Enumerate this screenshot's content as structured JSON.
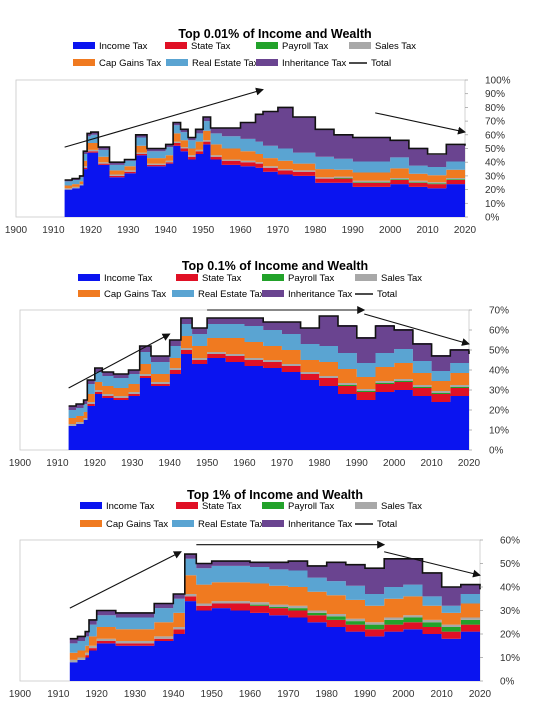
{
  "colors": {
    "income": "#0a14f0",
    "state": "#e01025",
    "payroll": "#22a22a",
    "sales": "#a8a8a8",
    "capgains": "#f07a20",
    "realestate": "#5aa4d2",
    "inheritance": "#6a4490",
    "total": "#111111"
  },
  "chart_data": [
    {
      "type": "area",
      "stacked": true,
      "step": true,
      "title": "Top 0.01% of Income and Wealth",
      "legend_position": "top",
      "legend": [
        "Income Tax",
        "State Tax",
        "Payroll Tax",
        "Sales Tax",
        "Cap Gains Tax",
        "Real Estate Tax",
        "Inheritance Tax",
        "Total"
      ],
      "xlim": [
        1900,
        2020
      ],
      "xticks": [
        "1900",
        "1910",
        "1920",
        "1930",
        "1940",
        "1950",
        "1960",
        "1970",
        "1980",
        "1990",
        "2000",
        "2010",
        "2020"
      ],
      "ylim": [
        0,
        100
      ],
      "yticks": [
        "0%",
        "10%",
        "20%",
        "30%",
        "40%",
        "50%",
        "60%",
        "70%",
        "80%",
        "90%",
        "100%"
      ],
      "y_axis_side": "right",
      "grid": false,
      "arrows": [
        {
          "from": [
            1913,
            51
          ],
          "to": [
            1966,
            93
          ]
        },
        {
          "from": [
            1996,
            76
          ],
          "to": [
            2020,
            62
          ]
        }
      ],
      "x": [
        1913,
        1915,
        1917,
        1918,
        1919,
        1920,
        1922,
        1925,
        1929,
        1932,
        1935,
        1940,
        1942,
        1944,
        1946,
        1948,
        1950,
        1952,
        1955,
        1960,
        1964,
        1966,
        1970,
        1974,
        1980,
        1985,
        1990,
        2000,
        2005,
        2010,
        2015,
        2020
      ],
      "series": [
        {
          "key": "income",
          "values": [
            20,
            21,
            23,
            35,
            47,
            47,
            38,
            29,
            32,
            45,
            37,
            39,
            52,
            48,
            42,
            46,
            53,
            42,
            38,
            37,
            36,
            33,
            31,
            30,
            25,
            25,
            22,
            24,
            22,
            21,
            24,
            23
          ]
        },
        {
          "key": "state",
          "values": [
            0,
            0,
            0,
            1,
            1,
            1,
            1,
            1,
            1,
            1,
            1,
            1,
            2,
            2,
            2,
            2,
            2,
            2,
            3,
            3,
            3,
            3,
            3,
            3,
            3,
            3,
            3,
            3,
            3,
            3,
            3,
            3
          ]
        },
        {
          "key": "payroll",
          "values": [
            0,
            0,
            0,
            0,
            0,
            0,
            0,
            0,
            0,
            0,
            0,
            0,
            0,
            0,
            0,
            0,
            0,
            0,
            0,
            0,
            0,
            0,
            0,
            0,
            0,
            0.5,
            0.5,
            0.5,
            0.5,
            0.5,
            0.5,
            0.5
          ]
        },
        {
          "key": "sales",
          "values": [
            1,
            1,
            1,
            1,
            1,
            1,
            1,
            1,
            1,
            1,
            1,
            1,
            1,
            1,
            1,
            1,
            1,
            1,
            1,
            1,
            1,
            1,
            1,
            1,
            1,
            1,
            1,
            1,
            1,
            1,
            1,
            1
          ]
        },
        {
          "key": "capgains",
          "values": [
            2,
            2,
            2,
            4,
            5,
            5,
            4,
            3,
            3,
            5,
            4,
            4,
            6,
            5,
            5,
            6,
            7,
            8,
            8,
            7,
            6,
            6,
            6,
            5,
            6,
            5,
            6,
            7,
            5,
            5,
            6,
            5
          ]
        },
        {
          "key": "realestate",
          "values": [
            3,
            3,
            3,
            5,
            5,
            6,
            5,
            4,
            4,
            6,
            5,
            6,
            6,
            6,
            6,
            6,
            7,
            8,
            9,
            9,
            9,
            9,
            9,
            8,
            9,
            8,
            8,
            8,
            6,
            6,
            6,
            6
          ]
        },
        {
          "key": "inheritance",
          "values": [
            1,
            1,
            1,
            2,
            2,
            2,
            2,
            2,
            1,
            2,
            2,
            2,
            2,
            2,
            2,
            3,
            3,
            4,
            6,
            12,
            20,
            25,
            30,
            26,
            20,
            17,
            18,
            13,
            13,
            9,
            12,
            13
          ]
        }
      ],
      "total_values": [
        27,
        28,
        30,
        48,
        61,
        62,
        51,
        40,
        42,
        60,
        50,
        53,
        69,
        64,
        58,
        64,
        73,
        65,
        65,
        69,
        75,
        77,
        80,
        73,
        64,
        60,
        58,
        56,
        50,
        46,
        53,
        52
      ]
    },
    {
      "type": "area",
      "stacked": true,
      "step": true,
      "title": "Top 0.1% of Income and Wealth",
      "legend_position": "top",
      "legend": [
        "Income Tax",
        "State Tax",
        "Payroll Tax",
        "Sales Tax",
        "Cap Gains Tax",
        "Real Estate Tax",
        "Inheritance Tax",
        "Total"
      ],
      "xlim": [
        1900,
        2020
      ],
      "xticks": [
        "1900",
        "1910",
        "1920",
        "1930",
        "1940",
        "1950",
        "1960",
        "1970",
        "1980",
        "1990",
        "2000",
        "2010",
        "2020"
      ],
      "ylim": [
        0,
        70
      ],
      "yticks": [
        "0%",
        "10%",
        "20%",
        "30%",
        "40%",
        "50%",
        "60%",
        "70%"
      ],
      "y_axis_side": "right",
      "grid": false,
      "arrows": [
        {
          "from": [
            1913,
            31
          ],
          "to": [
            1940,
            58
          ]
        },
        {
          "from": [
            1950,
            70
          ],
          "to": [
            1992,
            70
          ]
        },
        {
          "from": [
            1992,
            68
          ],
          "to": [
            2020,
            53
          ]
        }
      ],
      "x": [
        1913,
        1915,
        1917,
        1918,
        1920,
        1922,
        1925,
        1929,
        1932,
        1935,
        1940,
        1943,
        1946,
        1950,
        1955,
        1960,
        1965,
        1970,
        1975,
        1980,
        1985,
        1990,
        1995,
        2000,
        2005,
        2010,
        2015,
        2020
      ],
      "series": [
        {
          "key": "income",
          "values": [
            12,
            13,
            15,
            22,
            28,
            26,
            25,
            27,
            36,
            32,
            38,
            48,
            43,
            46,
            44,
            42,
            41,
            39,
            35,
            32,
            28,
            25,
            29,
            30,
            27,
            24,
            27,
            26
          ]
        },
        {
          "key": "state",
          "values": [
            0,
            0,
            0,
            1,
            1,
            1,
            1,
            1,
            1,
            1,
            2,
            2,
            2,
            2,
            3,
            3,
            3,
            3,
            3,
            4,
            4,
            4,
            4,
            4,
            4,
            4,
            4,
            4
          ]
        },
        {
          "key": "payroll",
          "values": [
            0,
            0,
            0,
            0,
            0,
            0,
            0,
            0,
            0,
            0,
            0,
            0,
            0,
            0,
            0,
            0,
            0,
            0,
            0,
            0,
            0.5,
            0.5,
            0.5,
            0.5,
            0.5,
            0.5,
            0.5,
            0.5
          ]
        },
        {
          "key": "sales",
          "values": [
            1,
            1,
            1,
            1,
            1,
            1,
            1,
            1,
            1,
            1,
            1,
            1,
            1,
            1,
            1,
            1,
            1,
            1,
            1,
            1,
            1,
            1,
            1,
            1,
            1,
            1,
            1,
            1
          ]
        },
        {
          "key": "capgains",
          "values": [
            3,
            3,
            3,
            4,
            4,
            4,
            4,
            4,
            5,
            4,
            5,
            6,
            6,
            7,
            8,
            8,
            7,
            7,
            6,
            7,
            7,
            6,
            7,
            8,
            6,
            5,
            6,
            6
          ]
        },
        {
          "key": "realestate",
          "values": [
            4,
            4,
            4,
            5,
            5,
            5,
            5,
            5,
            6,
            6,
            6,
            6,
            6,
            7,
            7,
            8,
            8,
            8,
            8,
            8,
            8,
            7,
            7,
            7,
            6,
            5,
            5,
            5
          ]
        },
        {
          "key": "inheritance",
          "values": [
            2,
            2,
            2,
            2,
            2,
            2,
            2,
            2,
            3,
            3,
            3,
            3,
            3,
            3,
            3,
            4,
            4,
            6,
            8,
            15,
            14,
            13,
            14,
            10,
            9,
            8,
            7,
            6
          ]
        }
      ],
      "total_values": [
        22,
        23,
        25,
        35,
        41,
        39,
        38,
        40,
        52,
        47,
        55,
        66,
        61,
        66,
        66,
        66,
        64,
        64,
        61,
        67,
        62,
        56,
        62,
        60,
        53,
        47,
        50,
        48
      ]
    },
    {
      "type": "area",
      "stacked": true,
      "step": true,
      "title": "Top 1% of Income and Wealth",
      "legend_position": "top",
      "legend": [
        "Income Tax",
        "State Tax",
        "Payroll Tax",
        "Sales Tax",
        "Cap Gains Tax",
        "Real Estate Tax",
        "Inheritance Tax",
        "Total"
      ],
      "xlim": [
        1900,
        2020
      ],
      "xticks": [
        "1900",
        "1910",
        "1920",
        "1930",
        "1940",
        "1950",
        "1960",
        "1970",
        "1980",
        "1990",
        "2000",
        "2010",
        "2020"
      ],
      "ylim": [
        0,
        60
      ],
      "yticks": [
        "0%",
        "10%",
        "20%",
        "30%",
        "40%",
        "50%",
        "60%"
      ],
      "y_axis_side": "right",
      "grid": false,
      "arrows": [
        {
          "from": [
            1913,
            31
          ],
          "to": [
            1942,
            55
          ]
        },
        {
          "from": [
            1946,
            58
          ],
          "to": [
            1995,
            58
          ]
        },
        {
          "from": [
            1995,
            55
          ],
          "to": [
            2020,
            45
          ]
        }
      ],
      "x": [
        1913,
        1915,
        1917,
        1918,
        1920,
        1925,
        1930,
        1935,
        1940,
        1943,
        1946,
        1950,
        1955,
        1960,
        1965,
        1970,
        1975,
        1980,
        1985,
        1990,
        1995,
        2000,
        2005,
        2010,
        2015,
        2020
      ],
      "series": [
        {
          "key": "income",
          "values": [
            8,
            9,
            10,
            13,
            16,
            15,
            15,
            17,
            20,
            34,
            30,
            31,
            30,
            29,
            28,
            27,
            25,
            23,
            21,
            19,
            21,
            22,
            20,
            18,
            21,
            20
          ]
        },
        {
          "key": "state",
          "values": [
            0,
            0,
            1,
            1,
            1,
            1,
            1,
            1,
            2,
            2,
            2,
            2,
            3,
            3,
            3,
            3,
            3,
            3,
            3,
            3,
            3,
            3,
            3,
            3,
            3,
            3
          ]
        },
        {
          "key": "payroll",
          "values": [
            0,
            0,
            0,
            0,
            0,
            0,
            0,
            0,
            0,
            0,
            0,
            0,
            0,
            0.5,
            0.5,
            1,
            1,
            1.5,
            1.5,
            2,
            2,
            2,
            2,
            2,
            2,
            2
          ]
        },
        {
          "key": "sales",
          "values": [
            1,
            1,
            1,
            1,
            1,
            1,
            1,
            1,
            1,
            1,
            1,
            1,
            1,
            1,
            1,
            1,
            1,
            1,
            1,
            1,
            1,
            1,
            1,
            1,
            1,
            1
          ]
        },
        {
          "key": "capgains",
          "values": [
            3,
            3,
            3,
            4,
            5,
            5,
            5,
            6,
            6,
            8,
            8,
            8,
            8,
            8,
            8,
            8,
            8,
            8,
            8,
            7,
            8,
            8,
            6,
            5,
            6,
            6
          ]
        },
        {
          "key": "realestate",
          "values": [
            4,
            4,
            4,
            5,
            5,
            5,
            5,
            6,
            6,
            7,
            7,
            7,
            7,
            7,
            7,
            7,
            6,
            6,
            6,
            5,
            5,
            5,
            4,
            3,
            4,
            4
          ]
        },
        {
          "key": "inheritance",
          "values": [
            2,
            2,
            2,
            2,
            2,
            2,
            2,
            2,
            2,
            2,
            2,
            2,
            2,
            2,
            3,
            4,
            5,
            8,
            9,
            11,
            12,
            11,
            10,
            8,
            4,
            3
          ]
        }
      ],
      "total_values": [
        18,
        19,
        21,
        26,
        30,
        29,
        29,
        33,
        37,
        54,
        50,
        51,
        51,
        50.5,
        50.5,
        51,
        49,
        50.5,
        49.5,
        48,
        52,
        52,
        46,
        40,
        41,
        39
      ]
    }
  ]
}
